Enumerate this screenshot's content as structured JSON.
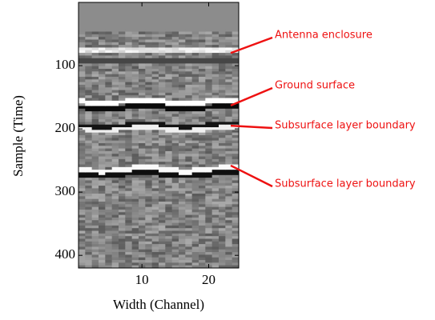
{
  "chart_data": {
    "type": "image",
    "xlabel": "Width (Channel)",
    "ylabel": "Sample (Time)",
    "xlim": [
      0.5,
      24.5
    ],
    "xticks": [
      10,
      20
    ],
    "ylim": [
      420,
      0
    ],
    "yticks": [
      100,
      200,
      300,
      400
    ],
    "annotation_color": "#ee1111",
    "annotations": [
      {
        "text": "Antenna enclosure",
        "y": 80
      },
      {
        "text": "Ground surface",
        "y": 163
      },
      {
        "text": "Subsurface layer boundary",
        "y": 195
      },
      {
        "text": "Subsurface layer boundary",
        "y": 258
      }
    ]
  }
}
